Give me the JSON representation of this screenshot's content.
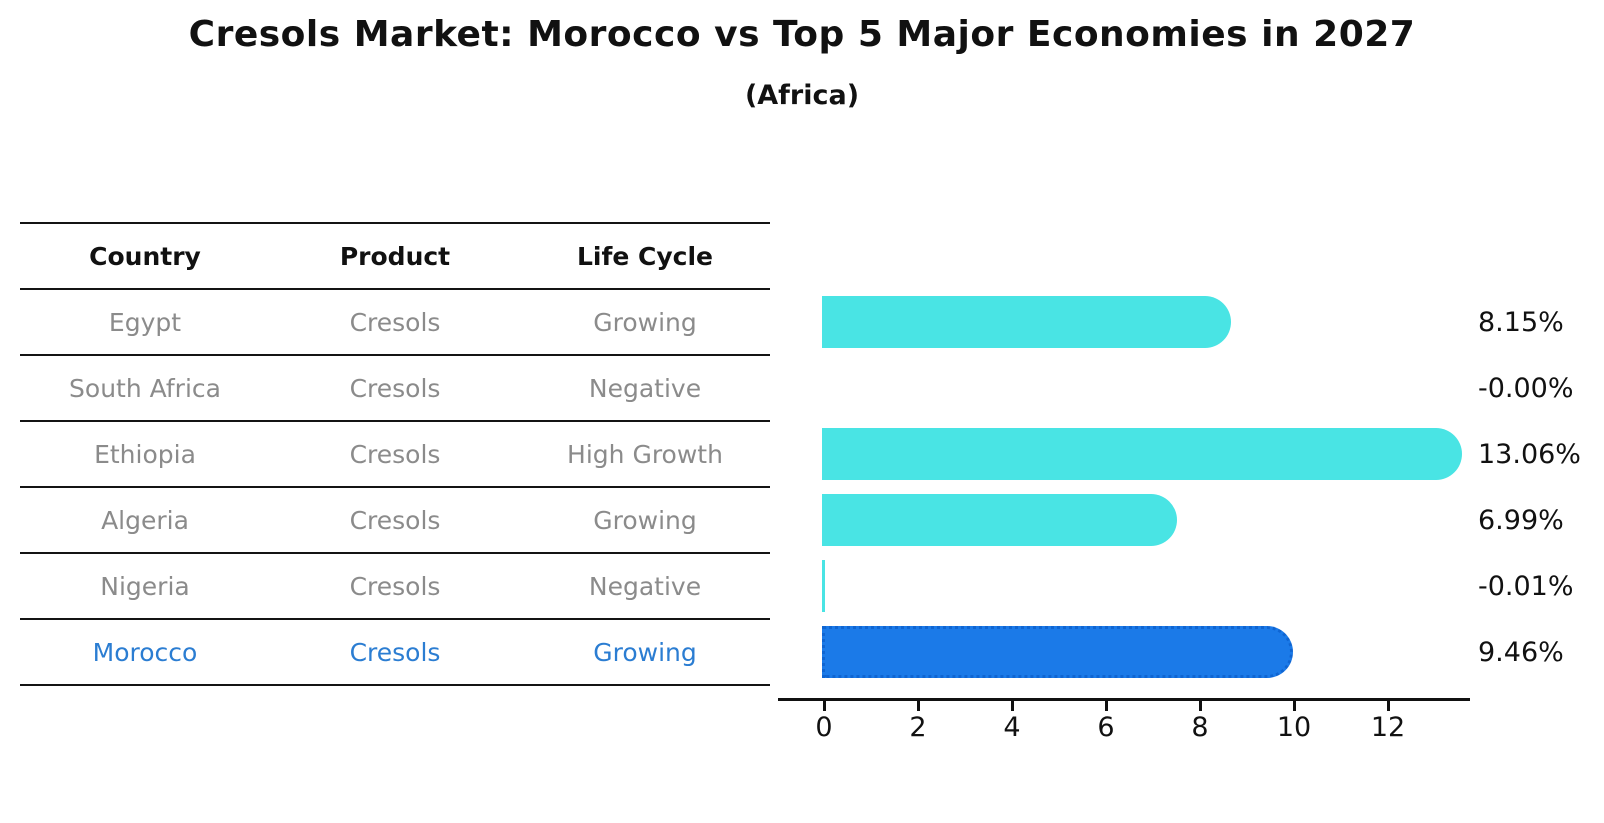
{
  "title": "Cresols Market: Morocco vs Top 5 Major Economies in 2027",
  "subtitle": "(Africa)",
  "table": {
    "headers": [
      "Country",
      "Product",
      "Life Cycle"
    ],
    "rows": [
      {
        "country": "Egypt",
        "product": "Cresols",
        "life_cycle": "Growing",
        "highlighted": false
      },
      {
        "country": "South Africa",
        "product": "Cresols",
        "life_cycle": "Negative",
        "highlighted": false
      },
      {
        "country": "Ethiopia",
        "product": "Cresols",
        "life_cycle": "High Growth",
        "highlighted": false
      },
      {
        "country": "Algeria",
        "product": "Cresols",
        "life_cycle": "Growing",
        "highlighted": false
      },
      {
        "country": "Nigeria",
        "product": "Cresols",
        "life_cycle": "Negative",
        "highlighted": false
      },
      {
        "country": "Morocco",
        "product": "Cresols",
        "life_cycle": "Growing",
        "highlighted": true
      }
    ]
  },
  "chart_data": {
    "type": "bar",
    "orientation": "horizontal",
    "title": "Cresols Market: Morocco vs Top 5 Major Economies in 2027",
    "subtitle": "(Africa)",
    "categories": [
      "Egypt",
      "South Africa",
      "Ethiopia",
      "Algeria",
      "Nigeria",
      "Morocco"
    ],
    "values": [
      8.15,
      -0.0,
      13.06,
      6.99,
      -0.01,
      9.46
    ],
    "value_labels": [
      "8.15%",
      "-0.00%",
      "13.06%",
      "6.99%",
      "-0.01%",
      "9.46%"
    ],
    "xticks": [
      "0",
      "2",
      "4",
      "6",
      "8",
      "10",
      "12"
    ],
    "xlim": [
      -0.5,
      13.5
    ],
    "grid": false,
    "legend": false,
    "highlight_index": 5,
    "colors": {
      "bar": "#49e4e4",
      "highlight_bar": "#1b7ae8",
      "highlight_text": "#2b7dd2",
      "table_text": "#8b8b8b",
      "ink": "#111111"
    }
  }
}
